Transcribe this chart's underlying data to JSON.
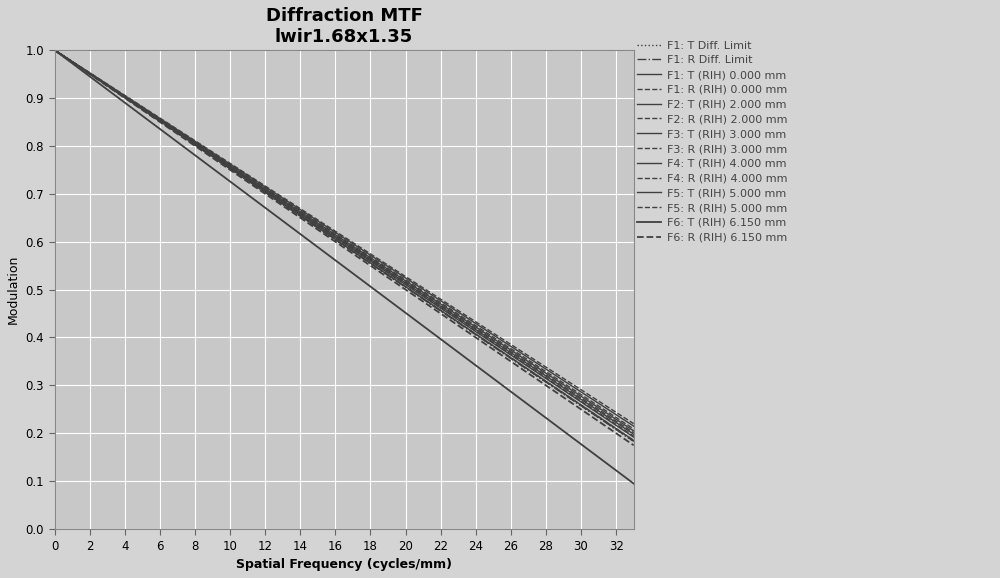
{
  "title_line1": "Diffraction MTF",
  "title_line2": "lwir1.68x1.35",
  "xlabel": "Spatial Frequency (cycles/mm)",
  "ylabel": "Modulation",
  "xlim": [
    0,
    33
  ],
  "ylim": [
    0,
    1.0
  ],
  "xticks": [
    0,
    2,
    4,
    6,
    8,
    10,
    12,
    14,
    16,
    18,
    20,
    22,
    24,
    26,
    28,
    30,
    32
  ],
  "yticks": [
    0,
    0.1,
    0.2,
    0.3,
    0.4,
    0.5,
    0.6,
    0.7,
    0.8,
    0.9,
    1
  ],
  "fig_bg_color": "#d4d4d4",
  "plot_bg_color": "#c8c8c8",
  "grid_color": "#ffffff",
  "line_color": "#404040",
  "curves": [
    {
      "label": "F1: T Diff. Limit",
      "linestyle": "dotted",
      "lw": 1.0,
      "end_val": 0.183
    },
    {
      "label": "F1: R Diff. Limit",
      "linestyle": "dashdot",
      "lw": 1.0,
      "end_val": 0.183
    },
    {
      "label": "F1: T (RIH) 0.000 mm",
      "linestyle": "solid",
      "lw": 1.0,
      "end_val": 0.185
    },
    {
      "label": "F1: R (RIH) 0.000 mm",
      "linestyle": "dashed",
      "lw": 1.0,
      "end_val": 0.185
    },
    {
      "label": "F2: T (RIH) 2.000 mm",
      "linestyle": "solid",
      "lw": 1.0,
      "end_val": 0.192
    },
    {
      "label": "F2: R (RIH) 2.000 mm",
      "linestyle": "dashed",
      "lw": 1.0,
      "end_val": 0.194
    },
    {
      "label": "F3: T (RIH) 3.000 mm",
      "linestyle": "solid",
      "lw": 1.0,
      "end_val": 0.198
    },
    {
      "label": "F3: R (RIH) 3.000 mm",
      "linestyle": "dashed",
      "lw": 1.0,
      "end_val": 0.201
    },
    {
      "label": "F4: T (RIH) 4.000 mm",
      "linestyle": "solid",
      "lw": 1.0,
      "end_val": 0.205
    },
    {
      "label": "F4: R (RIH) 4.000 mm",
      "linestyle": "dashed",
      "lw": 1.0,
      "end_val": 0.209
    },
    {
      "label": "F5: T (RIH) 5.000 mm",
      "linestyle": "solid",
      "lw": 1.0,
      "end_val": 0.215
    },
    {
      "label": "F5: R (RIH) 5.000 mm",
      "linestyle": "dashed",
      "lw": 1.0,
      "end_val": 0.22
    },
    {
      "label": "F6: T (RIH) 6.150 mm",
      "linestyle": "solid",
      "lw": 1.3,
      "end_val": 0.095
    },
    {
      "label": "F6: R (RIH) 6.150 mm",
      "linestyle": "dashed",
      "lw": 1.3,
      "end_val": 0.175
    }
  ],
  "legend_fontsize": 8.0,
  "title_fontsize": 13,
  "axis_label_fontsize": 9,
  "tick_fontsize": 8.5
}
